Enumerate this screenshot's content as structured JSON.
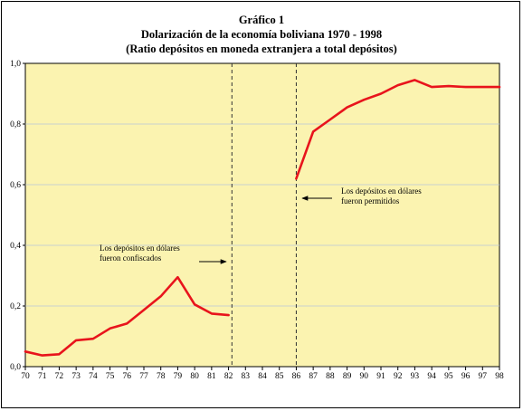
{
  "chart_data": {
    "type": "line",
    "title": "Gráfico 1",
    "subtitle": "Dolarización de la economía boliviana 1970 - 1998",
    "subtitle2": "(Ratio depósitos en moneda extranjera a total depósitos)",
    "xlabel": "",
    "ylabel": "",
    "x_ticks": [
      "70",
      "71",
      "72",
      "73",
      "74",
      "75",
      "76",
      "77",
      "78",
      "79",
      "80",
      "81",
      "82",
      "83",
      "84",
      "85",
      "86",
      "87",
      "88",
      "89",
      "90",
      "91",
      "92",
      "93",
      "94",
      "95",
      "96",
      "97",
      "98"
    ],
    "y_ticks": [
      "0,0",
      "0,2",
      "0,4",
      "0,6",
      "0,8",
      "1,0"
    ],
    "ylim": [
      0,
      1
    ],
    "xlim": [
      1970,
      1998
    ],
    "grid": true,
    "background_color": "#fbf3b0",
    "series": [
      {
        "color": "#e8141c",
        "segments": [
          [
            [
              1970,
              0.05
            ],
            [
              1971,
              0.037
            ],
            [
              1972,
              0.041
            ],
            [
              1973,
              0.087
            ],
            [
              1974,
              0.092
            ],
            [
              1975,
              0.126
            ],
            [
              1976,
              0.142
            ],
            [
              1977,
              0.187
            ],
            [
              1978,
              0.232
            ],
            [
              1979,
              0.295
            ],
            [
              1980,
              0.205
            ],
            [
              1981,
              0.175
            ],
            [
              1982,
              0.17
            ]
          ],
          [
            [
              1986,
              0.62
            ],
            [
              1987,
              0.775
            ],
            [
              1988,
              0.815
            ],
            [
              1989,
              0.855
            ],
            [
              1990,
              0.88
            ],
            [
              1991,
              0.9
            ],
            [
              1992,
              0.928
            ],
            [
              1993,
              0.945
            ],
            [
              1994,
              0.922
            ],
            [
              1995,
              0.925
            ],
            [
              1996,
              0.922
            ],
            [
              1997,
              0.922
            ],
            [
              1998,
              0.922
            ]
          ]
        ]
      }
    ],
    "vlines": [
      1982.2,
      1986
    ],
    "annotations": [
      {
        "lines": [
          "Los depósitos en dólares",
          "fueron confiscados"
        ],
        "arrow": "right"
      },
      {
        "lines": [
          "Los depósitos en dólares",
          "fueron permitidos"
        ],
        "arrow": "left"
      }
    ]
  }
}
